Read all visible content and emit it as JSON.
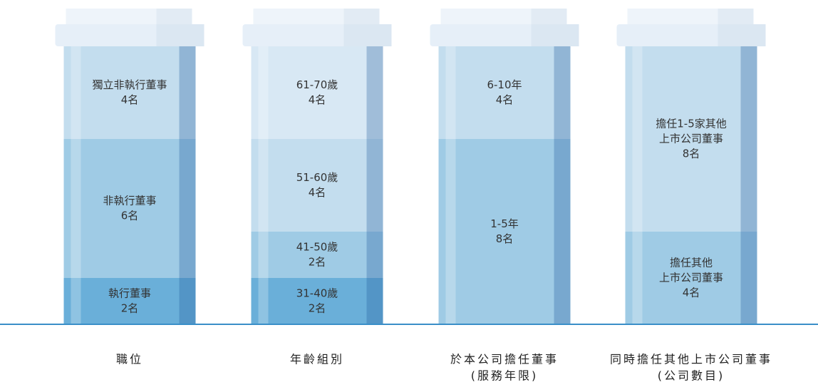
{
  "chart_data": {
    "type": "stacked_bar",
    "categories": [
      [
        "職位"
      ],
      [
        "年齡組別"
      ],
      [
        "於本公司擔任董事",
        "(服務年限)"
      ],
      [
        "同時擔任其他上市公司董事",
        "(公司數目)"
      ]
    ],
    "columns": [
      {
        "segments": [
          {
            "name": [
              "執行董事"
            ],
            "value": 2,
            "value_label": "2名",
            "color": "#6aafd9"
          },
          {
            "name": [
              "非執行董事"
            ],
            "value": 6,
            "value_label": "6名",
            "color": "#9fcbe5"
          },
          {
            "name": [
              "獨立非執行董事"
            ],
            "value": 4,
            "value_label": "4名",
            "color": "#c3ddee"
          }
        ]
      },
      {
        "segments": [
          {
            "name": [
              "31-40歲"
            ],
            "value": 2,
            "value_label": "2名",
            "color": "#6aafd9"
          },
          {
            "name": [
              "41-50歲"
            ],
            "value": 2,
            "value_label": "2名",
            "color": "#9fcbe5"
          },
          {
            "name": [
              "51-60歲"
            ],
            "value": 4,
            "value_label": "4名",
            "color": "#c3ddee"
          },
          {
            "name": [
              "61-70歲"
            ],
            "value": 4,
            "value_label": "4名",
            "color": "#d8e8f4"
          }
        ]
      },
      {
        "segments": [
          {
            "name": [
              "1-5年"
            ],
            "value": 8,
            "value_label": "8名",
            "color": "#9fcbe5"
          },
          {
            "name": [
              "6-10年"
            ],
            "value": 4,
            "value_label": "4名",
            "color": "#c3ddee"
          }
        ]
      },
      {
        "segments": [
          {
            "name": [
              "擔任其他",
              "上市公司董事"
            ],
            "value": 4,
            "value_label": "4名",
            "color": "#9fcbe5"
          },
          {
            "name": [
              "擔任1-5家其他",
              "上市公司董事"
            ],
            "value": 8,
            "value_label": "8名",
            "color": "#c3ddee"
          }
        ]
      }
    ]
  }
}
